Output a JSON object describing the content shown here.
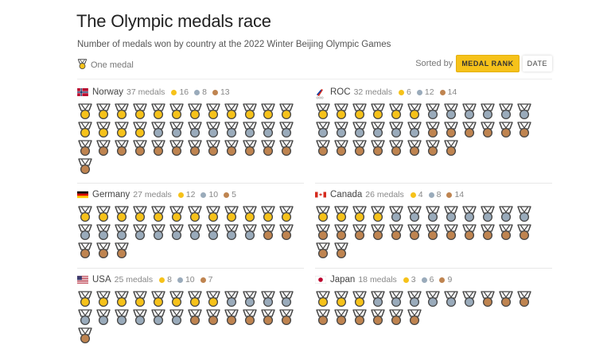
{
  "header": {
    "title": "The Olympic medals race",
    "subtitle": "Number of medals won by country at the 2022 Winter Beijing Olympic Games",
    "legend_label": "One medal"
  },
  "sort": {
    "label": "Sorted by",
    "options": [
      {
        "label": "MEDAL RANK",
        "active": true
      },
      {
        "label": "DATE",
        "active": false
      }
    ]
  },
  "colors": {
    "gold": "#f6c21a",
    "silver": "#9aabbb",
    "bronze": "#bf8450",
    "ribbon": "#ffffff",
    "outline": "#444444"
  },
  "chart_data": {
    "type": "pictogram",
    "title": "The Olympic medals race",
    "subtitle": "Number of medals won by country at the 2022 Winter Beijing Olympic Games",
    "unit": "One medal",
    "categories": [
      "Norway",
      "ROC",
      "Germany",
      "Canada",
      "USA",
      "Japan"
    ],
    "series": [
      {
        "name": "Gold",
        "values": [
          16,
          6,
          12,
          4,
          8,
          3
        ]
      },
      {
        "name": "Silver",
        "values": [
          8,
          12,
          10,
          8,
          10,
          6
        ]
      },
      {
        "name": "Bronze",
        "values": [
          13,
          14,
          5,
          14,
          7,
          9
        ]
      }
    ],
    "totals": [
      37,
      32,
      27,
      26,
      25,
      18
    ]
  },
  "countries": [
    {
      "name": "Norway",
      "flag": "norway",
      "total_label": "37 medals",
      "gold": 16,
      "silver": 8,
      "bronze": 13
    },
    {
      "name": "ROC",
      "flag": "roc",
      "total_label": "32 medals",
      "gold": 6,
      "silver": 12,
      "bronze": 14
    },
    {
      "name": "Germany",
      "flag": "germany",
      "total_label": "27 medals",
      "gold": 12,
      "silver": 10,
      "bronze": 5
    },
    {
      "name": "Canada",
      "flag": "canada",
      "total_label": "26 medals",
      "gold": 4,
      "silver": 8,
      "bronze": 14
    },
    {
      "name": "USA",
      "flag": "usa",
      "total_label": "25 medals",
      "gold": 8,
      "silver": 10,
      "bronze": 7
    },
    {
      "name": "Japan",
      "flag": "japan",
      "total_label": "18 medals",
      "gold": 3,
      "silver": 6,
      "bronze": 9
    }
  ]
}
